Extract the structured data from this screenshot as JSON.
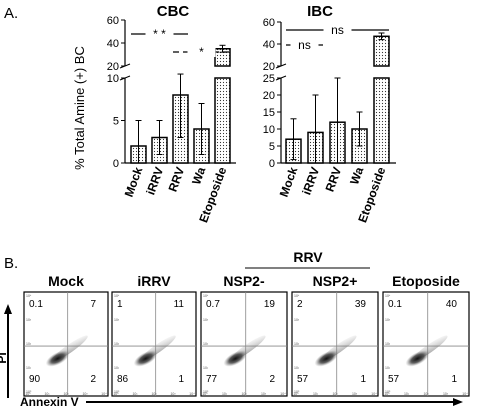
{
  "panel_labels": {
    "a": "A.",
    "b": "B."
  },
  "shared_ylabel": "% Total Amine (+) BC",
  "rrv_header": "RRV",
  "axis_labels_b": {
    "y": "PI",
    "x": "Annexin V"
  },
  "chart_data": [
    {
      "type": "bar",
      "title": "CBC",
      "categories": [
        "Mock",
        "iRRV",
        "RRV",
        "Wa",
        "Etoposide"
      ],
      "values": [
        2,
        3,
        8,
        4,
        35
      ],
      "errors": [
        3,
        2,
        5,
        3,
        3
      ],
      "ylim_lower": [
        0,
        10
      ],
      "ylim_upper": [
        20,
        60
      ],
      "yticks_lower": [
        "0",
        "5",
        "10"
      ],
      "yticks_upper": [
        "20",
        "40",
        "60"
      ],
      "significance": [
        {
          "from": "Mock",
          "to": "RRV",
          "label": "* *"
        },
        {
          "from": "RRV",
          "to": "Etoposide",
          "label": "*"
        }
      ]
    },
    {
      "type": "bar",
      "title": "IBC",
      "categories": [
        "Mock",
        "iRRV",
        "RRV",
        "Wa",
        "Etoposide"
      ],
      "values": [
        7,
        9,
        12,
        10,
        47
      ],
      "errors": [
        6,
        11,
        13,
        5,
        3
      ],
      "ylim_lower": [
        0,
        25
      ],
      "ylim_upper": [
        20,
        60
      ],
      "yticks_lower": [
        "0",
        "5",
        "10",
        "15",
        "20",
        "25"
      ],
      "yticks_upper": [
        "20",
        "40",
        "60"
      ],
      "significance": [
        {
          "from": "Mock",
          "to": "Etoposide",
          "label": "ns"
        },
        {
          "from": "Mock",
          "to": "iRRV",
          "label": "ns"
        }
      ]
    },
    {
      "type": "scatter",
      "subtype": "flow_cytometry_panels",
      "xlabel": "Annexin V",
      "ylabel": "PI",
      "panels": [
        {
          "label": "Mock",
          "quadrants": {
            "ul": "0.1",
            "ur": "7",
            "ll": "90",
            "lr": "2"
          }
        },
        {
          "label": "iRRV",
          "quadrants": {
            "ul": "1",
            "ur": "11",
            "ll": "86",
            "lr": "1"
          }
        },
        {
          "label": "NSP2-",
          "quadrants": {
            "ul": "0.7",
            "ur": "19",
            "ll": "77",
            "lr": "2"
          }
        },
        {
          "label": "NSP2+",
          "quadrants": {
            "ul": "2",
            "ur": "39",
            "ll": "57",
            "lr": "1"
          }
        },
        {
          "label": "Etoposide",
          "quadrants": {
            "ul": "0.1",
            "ur": "40",
            "ll": "57",
            "lr": "1"
          }
        }
      ]
    }
  ]
}
